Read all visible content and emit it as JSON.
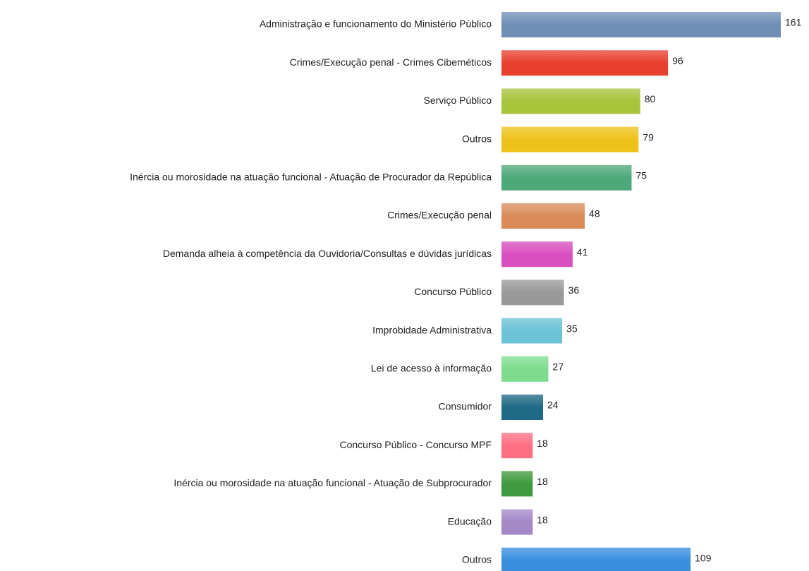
{
  "chart_data": {
    "type": "bar",
    "orientation": "horizontal",
    "categories": [
      "Administração e funcionamento do Ministério Público",
      "Crimes/Execução penal - Crimes Cibernéticos",
      "Serviço Público",
      "Outros",
      "Inércia ou morosidade na atuação funcional - Atuação de Procurador da República",
      "Crimes/Execução penal",
      "Demanda alheia à competência da Ouvidoria/Consultas e dúvidas jurídicas",
      "Concurso Público",
      "Improbidade Administrativa",
      "Lei de acesso à informação",
      "Consumidor",
      "Concurso Público - Concurso MPF",
      "Inércia ou morosidade na atuação funcional - Atuação de Subprocurador",
      "Educação",
      "Outros"
    ],
    "values": [
      161,
      96,
      80,
      79,
      75,
      48,
      41,
      36,
      35,
      27,
      24,
      18,
      18,
      18,
      109
    ],
    "colors": [
      "#6f8fb5",
      "#e8402e",
      "#a8c43a",
      "#eec21a",
      "#4ea97a",
      "#d98c5a",
      "#d94fbf",
      "#999999",
      "#6cc3d6",
      "#7edc8e",
      "#1f6a86",
      "#ff6f84",
      "#3f9a3f",
      "#a488c8",
      "#3a8fe0"
    ]
  }
}
